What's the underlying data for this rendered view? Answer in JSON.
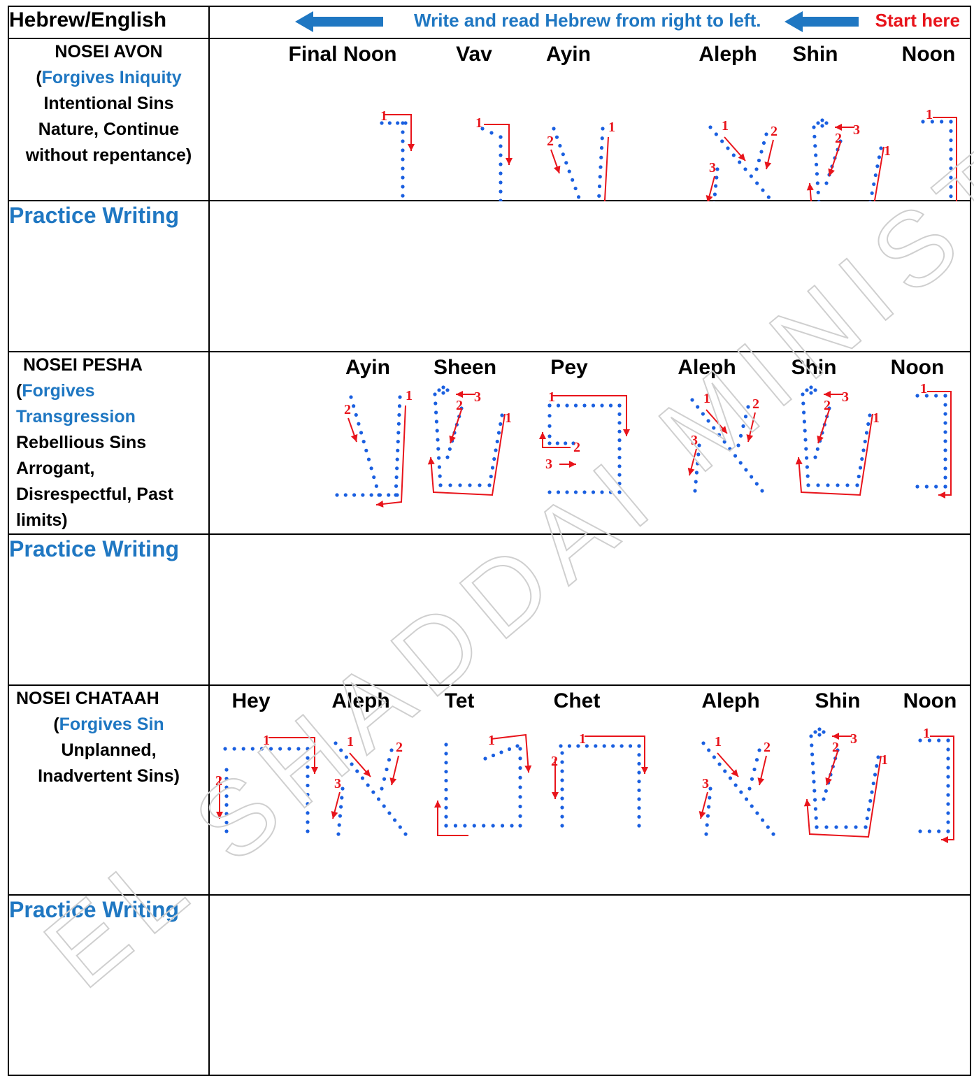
{
  "header": {
    "left": "Hebrew/English",
    "note": "Write and read Hebrew from right to left.",
    "start": "Start here"
  },
  "rows": [
    {
      "label": [
        "NOSEI AVON",
        "(",
        "Forgives Iniquity",
        "Intentional Sins",
        "Nature, Continue",
        "without repentance)"
      ],
      "letters": [
        "Final Noon",
        "Vav",
        "Ayin",
        "Aleph",
        "Shin",
        "Noon"
      ]
    },
    {
      "label": [
        "NOSEI PESHA",
        "(",
        "Forgives",
        "Transgression",
        "Rebellious Sins",
        "Arrogant,",
        "Disrespectful, Past",
        "limits)"
      ],
      "letters": [
        "Ayin",
        "Sheen",
        "Pey",
        "Aleph",
        "Shin",
        "Noon"
      ]
    },
    {
      "label": [
        "NOSEI CHATAAH",
        "(",
        "Forgives Sin",
        "Unplanned,",
        "Inadvertent Sins)"
      ],
      "letters": [
        "Hey",
        "Aleph",
        "Tet",
        "Chet",
        "Aleph",
        "Shin",
        "Noon"
      ]
    }
  ],
  "practice_label": "Practice Writing",
  "watermark": "EL SHADDAI MINISTRIES",
  "colors": {
    "blue": "#1f77c2",
    "red": "#e8141b",
    "dot": "#1a5fe0"
  }
}
